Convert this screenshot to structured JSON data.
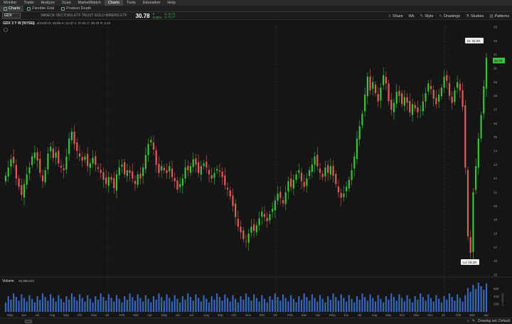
{
  "menu": [
    "Monitor",
    "Trade",
    "Analyze",
    "Scan",
    "MarketWatch",
    "Charts",
    "Tools",
    "Education",
    "Help"
  ],
  "menu_active": "Charts",
  "tabs": [
    {
      "label": "Charts",
      "active": true
    },
    {
      "label": "Flexible Grid",
      "active": false
    },
    {
      "label": "Product Depth",
      "active": false
    }
  ],
  "symbol": "GDX",
  "description": "VANECK VECTORS ETF TRUST GOLD MINERS ETF",
  "last_price": "30.78",
  "change": "0",
  "change_pct": "0.00%",
  "bid": "B: 30.73",
  "ask": "A: 30.77",
  "tools": [
    "Share",
    "Style",
    "Drawings",
    "Studies",
    "Patterns"
  ],
  "period_label": "Wk",
  "header_line": {
    "title": "GDX 3 Y W [NYSE]",
    "values": "D: 4/13/20   O: 28.65   H: 31.07   L: 27.81   C: 30.78   R: 3.16"
  },
  "annotations": {
    "high": "Hi: 31.84",
    "low": "Lo: 16.18",
    "current": "30.78"
  },
  "volume_label": "Volume",
  "volume_value": "59,888,601",
  "volume_unit": "×1,000,000",
  "status_right": "Drawing set: Default",
  "colors": {
    "up": "#3fbf3f",
    "down": "#e15b5b",
    "grid": "#2c2c2c",
    "bg": "#151515"
  },
  "chart_data": {
    "type": "candlestick",
    "ylim": [
      15,
      33
    ],
    "yticks": [
      15,
      16,
      17,
      18,
      19,
      20,
      21,
      22,
      23,
      24,
      25,
      26,
      27,
      28,
      29,
      30,
      31,
      32,
      33
    ],
    "volume_ticks": [
      200,
      400,
      600
    ],
    "x_labels": [
      "May",
      "Jun",
      "Jul",
      "Aug",
      "Sep",
      "Oct",
      "Nov",
      "18",
      "Feb",
      "Mar",
      "Apr",
      "May",
      "Jun",
      "Jul",
      "Aug",
      "Sep",
      "Oct",
      "Nov",
      "Dec",
      "19",
      "Feb",
      "Mar",
      "Apr",
      "May",
      "Jun",
      "Jul",
      "Aug",
      "Sep",
      "Oct",
      "Nov",
      "Dec",
      "20",
      "Feb",
      "Mar",
      "Apr"
    ],
    "closes": [
      22.2,
      22.8,
      23.4,
      23.1,
      22.0,
      21.4,
      20.8,
      21.6,
      22.3,
      22.8,
      23.6,
      23.9,
      23.3,
      22.4,
      21.8,
      22.6,
      23.8,
      24.3,
      23.5,
      23.9,
      23.1,
      22.8,
      22.6,
      23.6,
      24.9,
      25.4,
      24.5,
      24.0,
      23.6,
      23.3,
      23.6,
      22.9,
      23.1,
      23.5,
      23.0,
      22.7,
      22.4,
      21.9,
      21.6,
      22.1,
      21.9,
      21.3,
      22.3,
      22.8,
      23.0,
      22.3,
      22.6,
      22.4,
      22.0,
      21.6,
      22.3,
      22.0,
      22.8,
      23.7,
      24.5,
      24.8,
      24.1,
      23.0,
      22.4,
      22.9,
      22.6,
      22.4,
      22.9,
      22.1,
      21.8,
      21.2,
      21.6,
      22.0,
      22.8,
      22.6,
      22.9,
      23.4,
      23.0,
      22.4,
      22.9,
      23.1,
      22.8,
      22.3,
      22.0,
      22.4,
      22.7,
      22.5,
      22.1,
      21.5,
      21.2,
      20.7,
      20.0,
      19.2,
      18.5,
      18.1,
      17.6,
      17.4,
      18.0,
      18.5,
      18.2,
      18.6,
      19.1,
      19.6,
      19.2,
      18.9,
      19.4,
      19.8,
      20.4,
      20.9,
      20.6,
      20.2,
      21.0,
      21.8,
      21.4,
      21.9,
      22.3,
      22.6,
      21.8,
      21.4,
      22.0,
      22.6,
      23.0,
      23.6,
      22.9,
      22.4,
      22.1,
      22.8,
      22.4,
      22.9,
      22.2,
      21.6,
      21.0,
      20.6,
      20.9,
      21.4,
      21.9,
      22.6,
      23.6,
      24.9,
      25.8,
      26.7,
      28.1,
      29.4,
      28.4,
      29.0,
      28.2,
      27.6,
      28.6,
      29.5,
      28.9,
      27.6,
      27.0,
      27.5,
      28.3,
      28.0,
      27.4,
      27.9,
      27.5,
      26.8,
      27.4,
      27.1,
      26.8,
      27.0,
      27.6,
      28.2,
      28.9,
      28.5,
      27.8,
      27.4,
      28.1,
      28.6,
      29.4,
      29.1,
      28.0,
      27.5,
      28.4,
      29.0,
      28.4,
      27.2,
      22.8,
      17.8,
      16.6,
      21.0,
      22.9,
      24.9,
      26.6,
      28.7,
      30.78
    ]
  }
}
